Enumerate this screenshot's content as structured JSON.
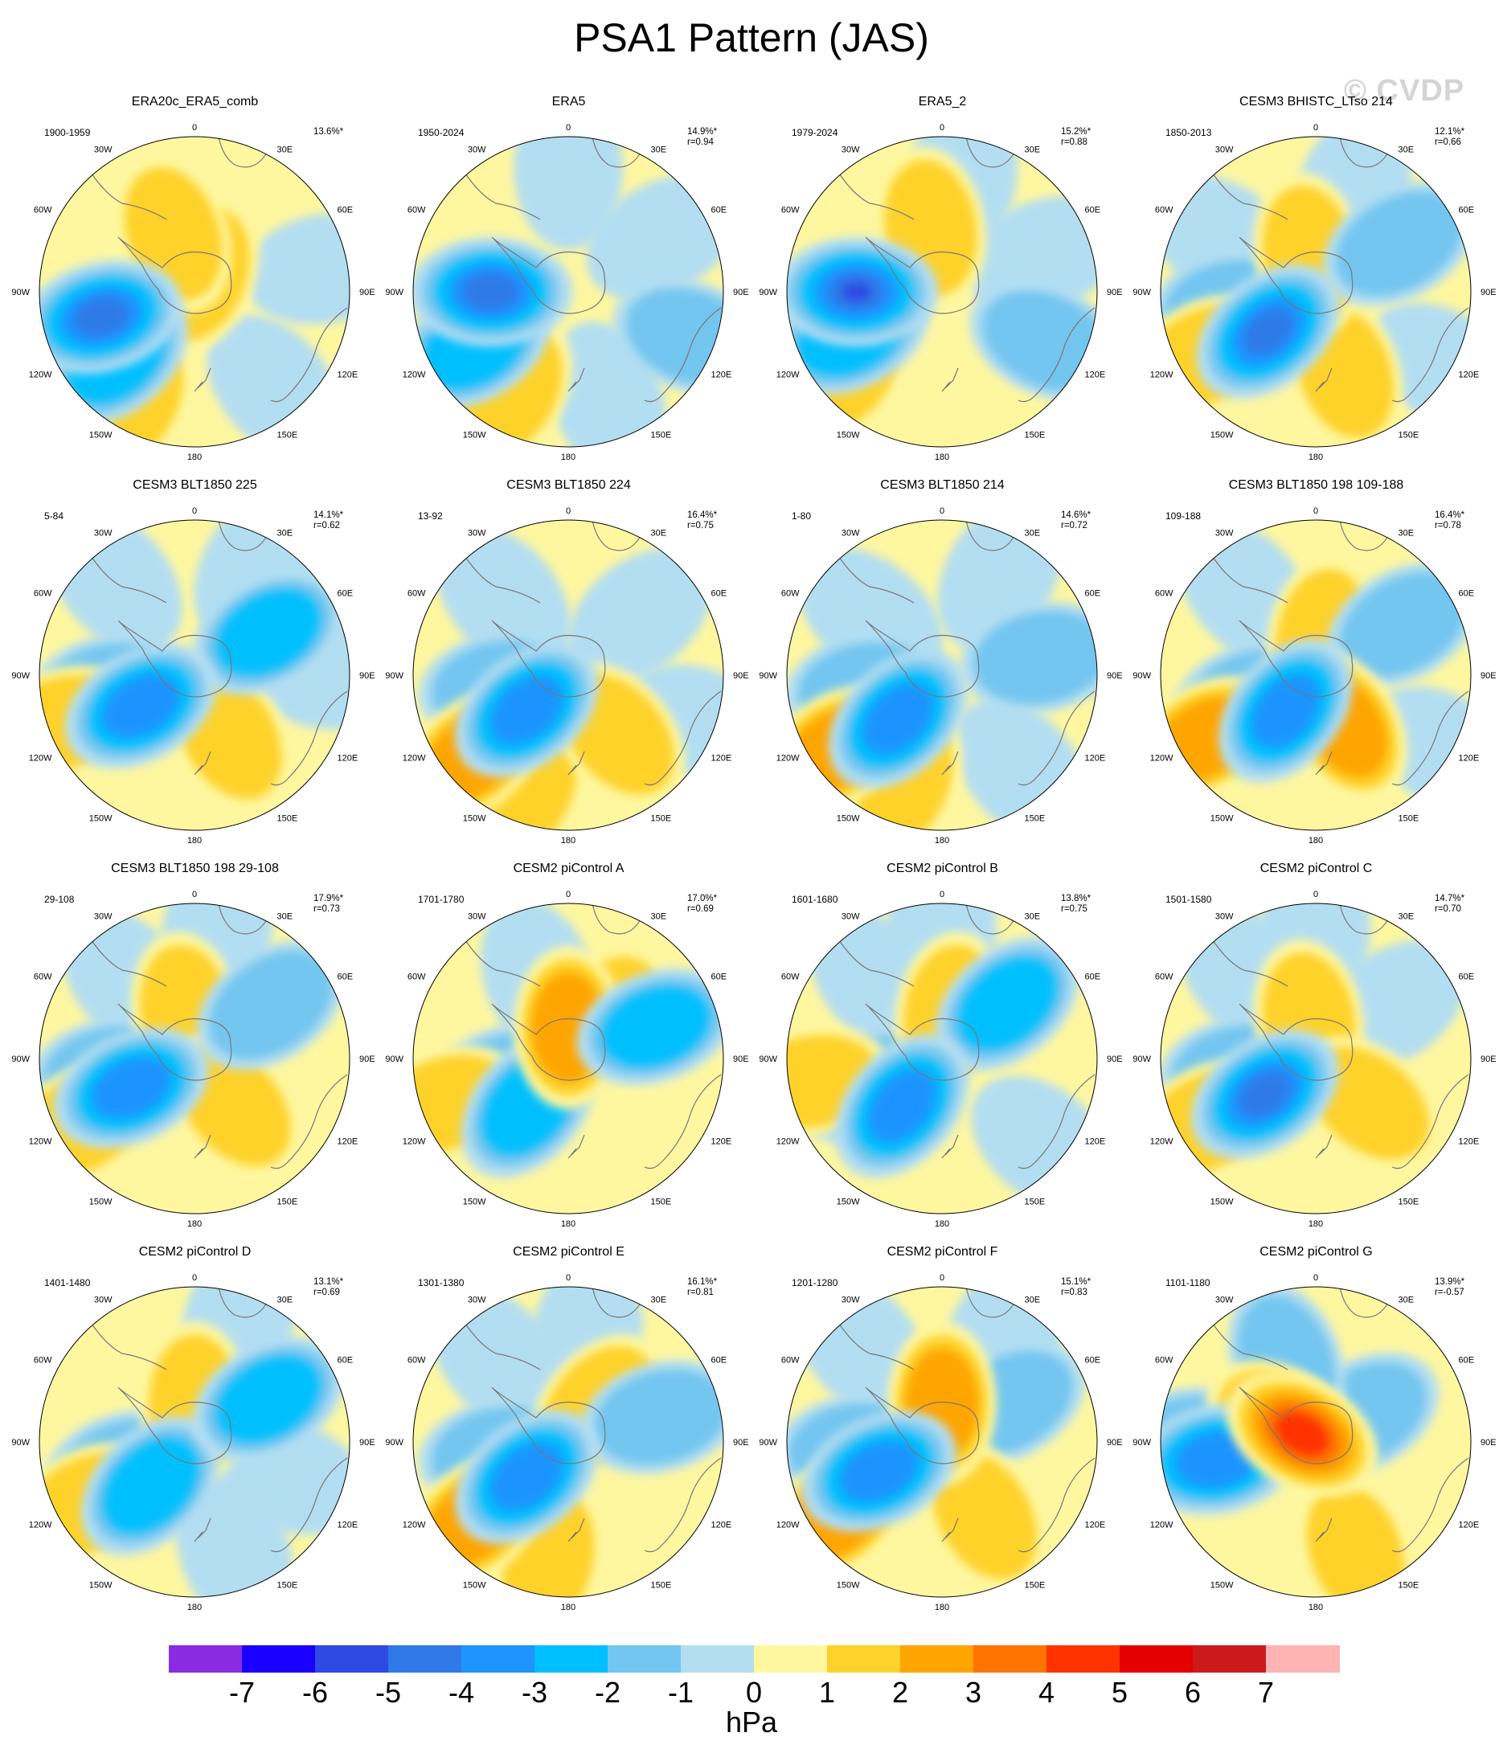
{
  "title": "PSA1 Pattern (JAS)",
  "watermark": "© CVDP",
  "longitude_labels": [
    "0",
    "30E",
    "60E",
    "90E",
    "120E",
    "150E",
    "180",
    "150W",
    "120W",
    "90W",
    "60W",
    "30W"
  ],
  "panels": [
    {
      "title": "ERA20c_ERA5_comb",
      "years": "1900-1959",
      "pct": "13.6%*",
      "r": "",
      "pattern": [
        {
          "lon": -105,
          "rf": 0.62,
          "a": -5
        },
        {
          "lon": -130,
          "rf": 0.66,
          "a": -3
        },
        {
          "lon": -120,
          "rf": 0.9,
          "a": 2
        },
        {
          "lon": -150,
          "rf": 0.82,
          "a": 2
        },
        {
          "lon": 20,
          "rf": 0.12,
          "a": 2
        },
        {
          "lon": -20,
          "rf": 0.4,
          "a": 2
        },
        {
          "lon": 80,
          "rf": 0.85,
          "a": -1
        },
        {
          "lon": 140,
          "rf": 0.8,
          "a": -1
        },
        {
          "lon": 180,
          "rf": 0.82,
          "a": 0
        }
      ]
    },
    {
      "title": "ERA5",
      "years": "1950-2024",
      "pct": "14.9%*",
      "r": "r=0.94",
      "pattern": [
        {
          "lon": -90,
          "rf": 0.5,
          "a": -5
        },
        {
          "lon": -120,
          "rf": 0.7,
          "a": -3
        },
        {
          "lon": -120,
          "rf": 0.88,
          "a": 2
        },
        {
          "lon": -150,
          "rf": 0.75,
          "a": 2
        },
        {
          "lon": -20,
          "rf": 0.45,
          "a": 1
        },
        {
          "lon": 110,
          "rf": 0.85,
          "a": -2
        },
        {
          "lon": 60,
          "rf": 0.7,
          "a": -1
        },
        {
          "lon": 160,
          "rf": 0.75,
          "a": -1
        },
        {
          "lon": 0,
          "rf": 0.8,
          "a": -1
        }
      ]
    },
    {
      "title": "ERA5_2",
      "years": "1979-2024",
      "pct": "15.2%*",
      "r": "r=0.88",
      "pattern": [
        {
          "lon": -90,
          "rf": 0.55,
          "a": -6
        },
        {
          "lon": -115,
          "rf": 0.65,
          "a": -3
        },
        {
          "lon": -130,
          "rf": 0.88,
          "a": 2
        },
        {
          "lon": -160,
          "rf": 0.7,
          "a": 1
        },
        {
          "lon": -10,
          "rf": 0.42,
          "a": 2
        },
        {
          "lon": 115,
          "rf": 0.75,
          "a": -2
        },
        {
          "lon": 70,
          "rf": 0.7,
          "a": -1
        },
        {
          "lon": 10,
          "rf": 0.75,
          "a": -1
        }
      ]
    },
    {
      "title": "CESM3 BHISTC_LTso 214",
      "years": "1850-2013",
      "pct": "12.1%*",
      "r": "r=0.66",
      "pattern": [
        {
          "lon": -130,
          "rf": 0.4,
          "a": -5
        },
        {
          "lon": -100,
          "rf": 0.55,
          "a": -2
        },
        {
          "lon": -120,
          "rf": 0.85,
          "a": 2
        },
        {
          "lon": 160,
          "rf": 0.55,
          "a": 2
        },
        {
          "lon": -10,
          "rf": 0.25,
          "a": 2
        },
        {
          "lon": 60,
          "rf": 0.62,
          "a": -2
        },
        {
          "lon": 120,
          "rf": 0.95,
          "a": -1
        },
        {
          "lon": -60,
          "rf": 0.7,
          "a": -1
        },
        {
          "lon": 20,
          "rf": 0.7,
          "a": -1
        }
      ]
    },
    {
      "title": "CESM3 BLT1850 225",
      "years": "5-84",
      "pct": "14.1%*",
      "r": "r=0.62",
      "pattern": [
        {
          "lon": -120,
          "rf": 0.4,
          "a": -4
        },
        {
          "lon": -100,
          "rf": 0.55,
          "a": -2
        },
        {
          "lon": -110,
          "rf": 0.92,
          "a": 2
        },
        {
          "lon": 150,
          "rf": 0.45,
          "a": 2
        },
        {
          "lon": 60,
          "rf": 0.55,
          "a": -3
        },
        {
          "lon": 30,
          "rf": 0.8,
          "a": -1
        },
        {
          "lon": -40,
          "rf": 0.8,
          "a": -1
        },
        {
          "lon": 90,
          "rf": 0.9,
          "a": -1
        }
      ]
    },
    {
      "title": "CESM3 BLT1850 224",
      "years": "13-92",
      "pct": "16.4%*",
      "r": "r=0.75",
      "pattern": [
        {
          "lon": -130,
          "rf": 0.35,
          "a": -4
        },
        {
          "lon": -100,
          "rf": 0.45,
          "a": -2
        },
        {
          "lon": -130,
          "rf": 0.82,
          "a": 3
        },
        {
          "lon": -160,
          "rf": 0.75,
          "a": 2
        },
        {
          "lon": 140,
          "rf": 0.5,
          "a": 2
        },
        {
          "lon": 50,
          "rf": 0.6,
          "a": -1
        },
        {
          "lon": -40,
          "rf": 0.65,
          "a": -1
        },
        {
          "lon": 110,
          "rf": 0.9,
          "a": -1
        }
      ]
    },
    {
      "title": "CESM3 BLT1850 214",
      "years": "1-80",
      "pct": "14.6%*",
      "r": "r=0.72",
      "pattern": [
        {
          "lon": -135,
          "rf": 0.4,
          "a": -4
        },
        {
          "lon": -100,
          "rf": 0.5,
          "a": -2
        },
        {
          "lon": -125,
          "rf": 0.85,
          "a": 3
        },
        {
          "lon": -160,
          "rf": 0.72,
          "a": 2
        },
        {
          "lon": 80,
          "rf": 0.65,
          "a": -2
        },
        {
          "lon": 30,
          "rf": 0.75,
          "a": -1
        },
        {
          "lon": -50,
          "rf": 0.6,
          "a": -1
        },
        {
          "lon": 140,
          "rf": 0.8,
          "a": -1
        }
      ]
    },
    {
      "title": "CESM3 BLT1850 198 109-188",
      "years": "109-188",
      "pct": "16.4%*",
      "r": "r=0.78",
      "pattern": [
        {
          "lon": -140,
          "rf": 0.3,
          "a": -4
        },
        {
          "lon": -110,
          "rf": 0.45,
          "a": -2
        },
        {
          "lon": -120,
          "rf": 0.82,
          "a": 3
        },
        {
          "lon": 150,
          "rf": 0.38,
          "a": 3
        },
        {
          "lon": 10,
          "rf": 0.25,
          "a": 2
        },
        {
          "lon": 60,
          "rf": 0.65,
          "a": -2
        },
        {
          "lon": 120,
          "rf": 0.95,
          "a": -1
        },
        {
          "lon": -40,
          "rf": 0.7,
          "a": -1
        }
      ]
    },
    {
      "title": "CESM3 BLT1850 198 29-108",
      "years": "29-108",
      "pct": "17.9%*",
      "r": "r=0.73",
      "pattern": [
        {
          "lon": -115,
          "rf": 0.45,
          "a": -4
        },
        {
          "lon": -100,
          "rf": 0.55,
          "a": -2
        },
        {
          "lon": -120,
          "rf": 0.85,
          "a": 2
        },
        {
          "lon": -10,
          "rf": 0.3,
          "a": 2
        },
        {
          "lon": 140,
          "rf": 0.4,
          "a": 2
        },
        {
          "lon": 55,
          "rf": 0.6,
          "a": -2
        },
        {
          "lon": -40,
          "rf": 0.65,
          "a": -1
        },
        {
          "lon": 10,
          "rf": 0.85,
          "a": -1
        }
      ]
    },
    {
      "title": "CESM2 piControl A",
      "years": "1701-1780",
      "pct": "17.0%*",
      "r": "r=0.69",
      "pattern": [
        {
          "lon": -140,
          "rf": 0.4,
          "a": -3
        },
        {
          "lon": -110,
          "rf": 0.45,
          "a": -2
        },
        {
          "lon": 0,
          "rf": 0.2,
          "a": 3
        },
        {
          "lon": 40,
          "rf": 0.35,
          "a": 2
        },
        {
          "lon": 70,
          "rf": 0.6,
          "a": -3
        },
        {
          "lon": -20,
          "rf": 0.55,
          "a": -1
        },
        {
          "lon": -110,
          "rf": 0.85,
          "a": 2
        },
        {
          "lon": 160,
          "rf": 0.6,
          "a": 1
        }
      ]
    },
    {
      "title": "CESM2 piControl B",
      "years": "1601-1680",
      "pct": "13.8%*",
      "r": "r=0.75",
      "pattern": [
        {
          "lon": -140,
          "rf": 0.4,
          "a": -4
        },
        {
          "lon": -110,
          "rf": 0.5,
          "a": -2
        },
        {
          "lon": -100,
          "rf": 0.85,
          "a": 2
        },
        {
          "lon": 50,
          "rf": 0.55,
          "a": -3
        },
        {
          "lon": 10,
          "rf": 0.3,
          "a": 2
        },
        {
          "lon": -40,
          "rf": 0.65,
          "a": -1
        },
        {
          "lon": 130,
          "rf": 0.85,
          "a": -1
        },
        {
          "lon": 0,
          "rf": 0.85,
          "a": -1
        }
      ]
    },
    {
      "title": "CESM2 piControl C",
      "years": "1501-1580",
      "pct": "14.7%*",
      "r": "r=0.70",
      "pattern": [
        {
          "lon": -125,
          "rf": 0.4,
          "a": -5
        },
        {
          "lon": -100,
          "rf": 0.5,
          "a": -2
        },
        {
          "lon": -120,
          "rf": 0.82,
          "a": 2
        },
        {
          "lon": -10,
          "rf": 0.25,
          "a": 2
        },
        {
          "lon": 130,
          "rf": 0.45,
          "a": 2
        },
        {
          "lon": 55,
          "rf": 0.6,
          "a": -1
        },
        {
          "lon": -40,
          "rf": 0.7,
          "a": -1
        },
        {
          "lon": 0,
          "rf": 0.85,
          "a": -1
        }
      ]
    },
    {
      "title": "CESM2 piControl D",
      "years": "1401-1480",
      "pct": "13.1%*",
      "r": "r=0.69",
      "pattern": [
        {
          "lon": -135,
          "rf": 0.4,
          "a": -3
        },
        {
          "lon": -110,
          "rf": 0.5,
          "a": -2
        },
        {
          "lon": -120,
          "rf": 0.82,
          "a": 2
        },
        {
          "lon": 0,
          "rf": 0.25,
          "a": 2
        },
        {
          "lon": 60,
          "rf": 0.55,
          "a": -3
        },
        {
          "lon": 110,
          "rf": 0.65,
          "a": -1
        },
        {
          "lon": 160,
          "rf": 0.75,
          "a": -1
        },
        {
          "lon": 20,
          "rf": 0.85,
          "a": -1
        }
      ]
    },
    {
      "title": "CESM2 piControl E",
      "years": "1301-1380",
      "pct": "16.1%*",
      "r": "r=0.81",
      "pattern": [
        {
          "lon": -130,
          "rf": 0.35,
          "a": -4
        },
        {
          "lon": -100,
          "rf": 0.45,
          "a": -2
        },
        {
          "lon": -130,
          "rf": 0.8,
          "a": 3
        },
        {
          "lon": -170,
          "rf": 0.75,
          "a": 2
        },
        {
          "lon": 40,
          "rf": 0.3,
          "a": 2
        },
        {
          "lon": 75,
          "rf": 0.62,
          "a": -2
        },
        {
          "lon": 10,
          "rf": 0.7,
          "a": -1
        },
        {
          "lon": -40,
          "rf": 0.7,
          "a": -1
        }
      ]
    },
    {
      "title": "CESM2 piControl F",
      "years": "1201-1280",
      "pct": "15.1%*",
      "r": "r=0.83",
      "pattern": [
        {
          "lon": -115,
          "rf": 0.45,
          "a": -4
        },
        {
          "lon": -95,
          "rf": 0.55,
          "a": -2
        },
        {
          "lon": -125,
          "rf": 0.85,
          "a": 3
        },
        {
          "lon": 0,
          "rf": 0.25,
          "a": 3
        },
        {
          "lon": 60,
          "rf": 0.5,
          "a": -2
        },
        {
          "lon": 150,
          "rf": 0.55,
          "a": 2
        },
        {
          "lon": -40,
          "rf": 0.8,
          "a": -1
        },
        {
          "lon": 30,
          "rf": 0.8,
          "a": -1
        }
      ]
    },
    {
      "title": "CESM2 piControl G",
      "years": "1101-1180",
      "pct": "13.9%*",
      "r": "r=-0.57",
      "pattern": [
        {
          "lon": -60,
          "rf": 0.1,
          "a": 5
        },
        {
          "lon": -60,
          "rf": 0.25,
          "a": 3
        },
        {
          "lon": -100,
          "rf": 0.65,
          "a": -4
        },
        {
          "lon": -90,
          "rf": 0.75,
          "a": -2
        },
        {
          "lon": 60,
          "rf": 0.35,
          "a": -2
        },
        {
          "lon": -20,
          "rf": 0.55,
          "a": -2
        },
        {
          "lon": 160,
          "rf": 0.75,
          "a": 2
        },
        {
          "lon": 80,
          "rf": 0.8,
          "a": 1
        },
        {
          "lon": 20,
          "rf": 0.8,
          "a": 1
        }
      ]
    }
  ],
  "colorbar": {
    "colors": [
      "#8a2be2",
      "#1a00ff",
      "#2f49e3",
      "#2f7ae8",
      "#1e94ff",
      "#00bfff",
      "#73c6f0",
      "#b3def2",
      "#fff7a0",
      "#ffd22b",
      "#ffa500",
      "#ff7400",
      "#ff3300",
      "#e50000",
      "#cc1a1a",
      "#ffb3b3"
    ],
    "labels": [
      "-7",
      "-6",
      "-5",
      "-4",
      "-3",
      "-2",
      "-1",
      "0",
      "1",
      "2",
      "3",
      "4",
      "5",
      "6",
      "7"
    ],
    "units": "hPa"
  }
}
